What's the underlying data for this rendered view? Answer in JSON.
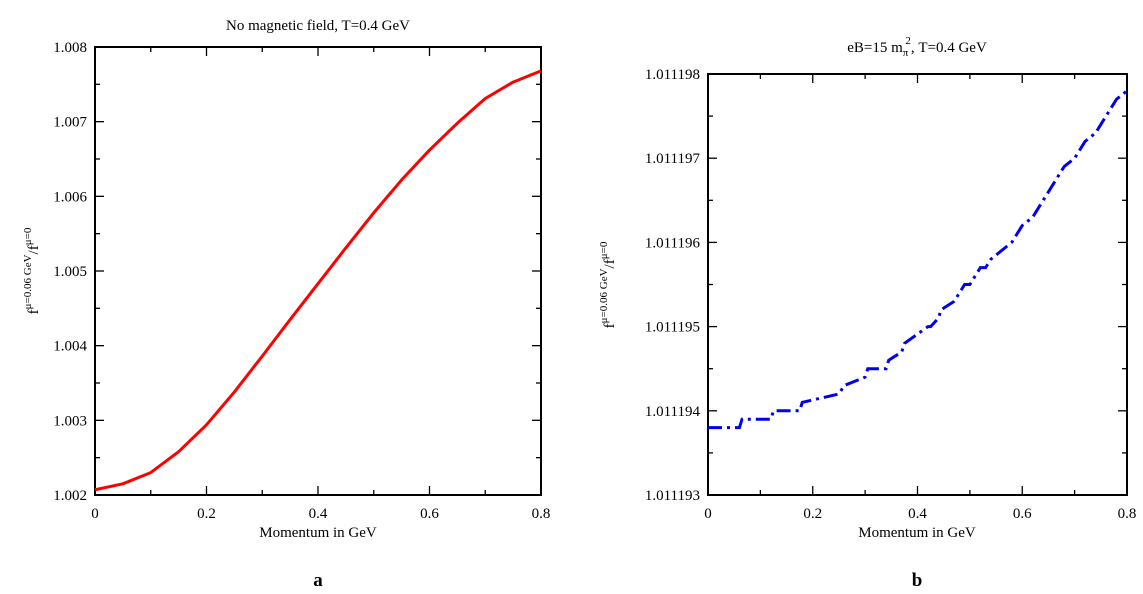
{
  "chart_data": [
    {
      "type": "line",
      "panel_label": "a",
      "title": "No magnetic field, T=0.4 GeV",
      "xlabel": "Momentum in GeV",
      "ylabel": {
        "base": "f",
        "sup1": "μ=0.06 GeV",
        "sep": "/f",
        "sup2": "μ=0"
      },
      "xlim": [
        0,
        0.8
      ],
      "ylim": [
        1.002,
        1.008
      ],
      "xticks": [
        "0",
        "0.2",
        "0.4",
        "0.6",
        "0.8"
      ],
      "yticks": [
        "1.002",
        "1.003",
        "1.004",
        "1.005",
        "1.006",
        "1.007",
        "1.008"
      ],
      "grid": false,
      "series": [
        {
          "color": "#ff0000",
          "style": "solid",
          "x": [
            0,
            0.05,
            0.1,
            0.15,
            0.2,
            0.25,
            0.3,
            0.35,
            0.4,
            0.45,
            0.5,
            0.55,
            0.6,
            0.65,
            0.7,
            0.75,
            0.8
          ],
          "y": [
            1.00207,
            1.00215,
            1.0023,
            1.00258,
            1.00294,
            1.00338,
            1.00386,
            1.00435,
            1.00483,
            1.00531,
            1.00578,
            1.00622,
            1.00662,
            1.00698,
            1.00731,
            1.00753,
            1.00768
          ]
        }
      ]
    },
    {
      "type": "line",
      "panel_label": "b",
      "title": {
        "pre": "eB=15 m",
        "sub": "π",
        "sup": "2",
        "post": ", T=0.4 GeV"
      },
      "xlabel": "Momentum in GeV",
      "ylabel": {
        "base": "f",
        "sup1": "μ=0.06 GeV",
        "sep": "/f",
        "sup2": "μ=0"
      },
      "xlim": [
        0,
        0.8
      ],
      "ylim": [
        1.011193,
        1.011198
      ],
      "xticks": [
        "0",
        "0.2",
        "0.4",
        "0.6",
        "0.8"
      ],
      "yticks": [
        "1.011193",
        "1.011194",
        "1.011195",
        "1.011196",
        "1.011197",
        "1.011198"
      ],
      "grid": false,
      "series": [
        {
          "color": "#0000ee",
          "style": "dash-dot",
          "x": [
            0,
            0.06,
            0.065,
            0.12,
            0.125,
            0.175,
            0.18,
            0.25,
            0.26,
            0.3,
            0.305,
            0.34,
            0.345,
            0.37,
            0.375,
            0.42,
            0.425,
            0.44,
            0.445,
            0.47,
            0.48,
            0.49,
            0.5,
            0.52,
            0.53,
            0.54,
            0.56,
            0.58,
            0.6,
            0.62,
            0.64,
            0.66,
            0.68,
            0.7,
            0.71,
            0.72,
            0.74,
            0.76,
            0.78,
            0.8
          ],
          "y": [
            1.0111938,
            1.0111938,
            1.0111939,
            1.0111939,
            1.011194,
            1.011194,
            1.0111941,
            1.0111942,
            1.0111943,
            1.0111944,
            1.0111945,
            1.0111945,
            1.0111946,
            1.0111947,
            1.0111948,
            1.011195,
            1.011195,
            1.0111951,
            1.0111952,
            1.0111953,
            1.0111954,
            1.0111955,
            1.0111955,
            1.0111957,
            1.0111957,
            1.0111958,
            1.0111959,
            1.011196,
            1.0111962,
            1.0111963,
            1.0111965,
            1.0111967,
            1.0111969,
            1.011197,
            1.0111971,
            1.0111972,
            1.0111973,
            1.0111975,
            1.0111977,
            1.0111978
          ]
        }
      ]
    }
  ]
}
